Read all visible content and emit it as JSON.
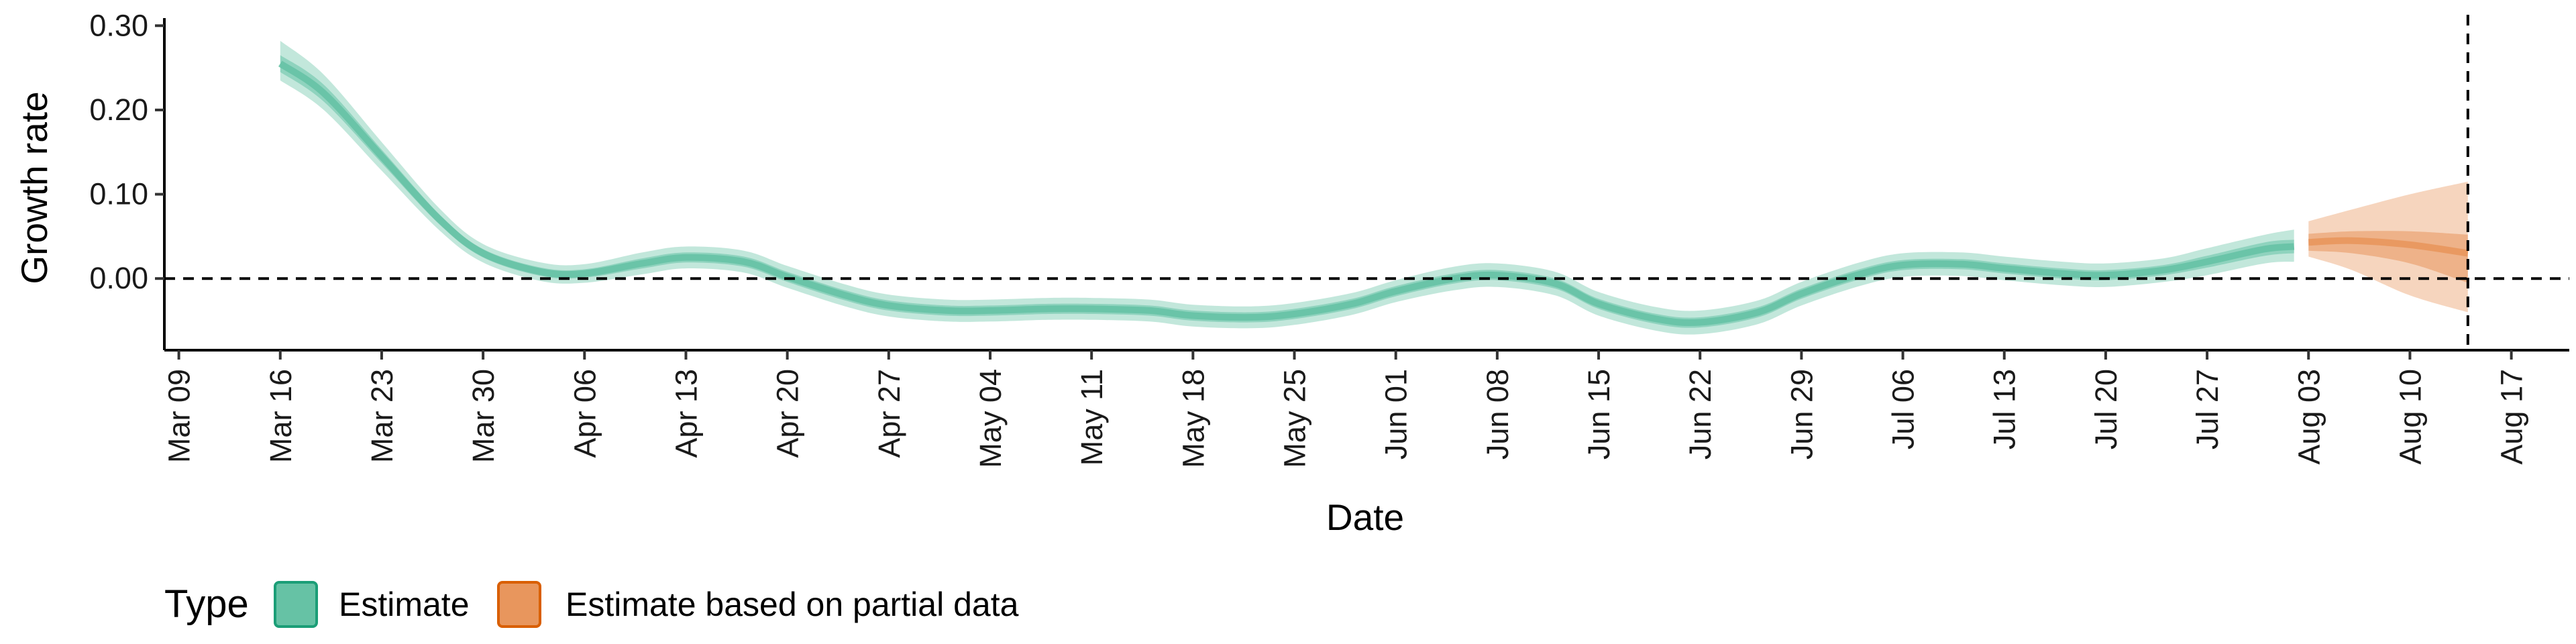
{
  "chart_data": {
    "type": "line",
    "xlabel": "Date",
    "ylabel": "Growth rate",
    "x_axis": {
      "scale": "date",
      "range": [
        "2020-03-08",
        "2020-08-21"
      ],
      "tick_labels": [
        "Mar 09",
        "Mar 16",
        "Mar 23",
        "Mar 30",
        "Apr 06",
        "Apr 13",
        "Apr 20",
        "Apr 27",
        "May 04",
        "May 11",
        "May 18",
        "May 25",
        "Jun 01",
        "Jun 08",
        "Jun 15",
        "Jun 22",
        "Jun 29",
        "Jul 06",
        "Jul 13",
        "Jul 20",
        "Jul 27",
        "Aug 03",
        "Aug 10",
        "Aug 17"
      ],
      "tick_values": [
        "2020-03-09",
        "2020-03-16",
        "2020-03-23",
        "2020-03-30",
        "2020-04-06",
        "2020-04-13",
        "2020-04-20",
        "2020-04-27",
        "2020-05-04",
        "2020-05-11",
        "2020-05-18",
        "2020-05-25",
        "2020-06-01",
        "2020-06-08",
        "2020-06-15",
        "2020-06-22",
        "2020-06-29",
        "2020-07-06",
        "2020-07-13",
        "2020-07-20",
        "2020-07-27",
        "2020-08-03",
        "2020-08-10",
        "2020-08-17"
      ]
    },
    "y_axis": {
      "range": [
        -0.085,
        0.305
      ],
      "tick_labels": [
        "0.00",
        "0.10",
        "0.20",
        "0.30"
      ],
      "tick_values": [
        0,
        0.1,
        0.2,
        0.3
      ]
    },
    "reference_lines": {
      "horizontal_y": 0,
      "vertical_x": "2020-08-14",
      "style": "dashed"
    },
    "grid": false,
    "legend": {
      "title": "Type",
      "position": "bottom-left",
      "entries": [
        {
          "label": "Estimate",
          "fill": "#66c2a5",
          "border": "#1b9e77"
        },
        {
          "label": "Estimate based on partial data",
          "fill": "#e8965d",
          "border": "#d95f02"
        }
      ]
    },
    "series": [
      {
        "name": "Estimate",
        "color": "#66c2a5",
        "x": [
          "2020-03-16",
          "2020-03-19",
          "2020-03-23",
          "2020-03-27",
          "2020-03-30",
          "2020-04-03",
          "2020-04-06",
          "2020-04-10",
          "2020-04-13",
          "2020-04-17",
          "2020-04-20",
          "2020-04-24",
          "2020-04-27",
          "2020-05-01",
          "2020-05-04",
          "2020-05-08",
          "2020-05-11",
          "2020-05-15",
          "2020-05-18",
          "2020-05-22",
          "2020-05-25",
          "2020-05-29",
          "2020-06-01",
          "2020-06-05",
          "2020-06-08",
          "2020-06-12",
          "2020-06-15",
          "2020-06-19",
          "2020-06-22",
          "2020-06-26",
          "2020-06-29",
          "2020-07-03",
          "2020-07-06",
          "2020-07-10",
          "2020-07-13",
          "2020-07-17",
          "2020-07-20",
          "2020-07-24",
          "2020-07-27",
          "2020-07-31",
          "2020-08-02"
        ],
        "mean": [
          0.255,
          0.22,
          0.145,
          0.07,
          0.03,
          0.008,
          0.006,
          0.018,
          0.025,
          0.02,
          0.002,
          -0.02,
          -0.032,
          -0.038,
          -0.038,
          -0.036,
          -0.036,
          -0.038,
          -0.044,
          -0.046,
          -0.042,
          -0.03,
          -0.015,
          0.0,
          0.004,
          -0.006,
          -0.03,
          -0.048,
          -0.052,
          -0.04,
          -0.018,
          0.005,
          0.016,
          0.017,
          0.012,
          0.006,
          0.004,
          0.01,
          0.02,
          0.035,
          0.038
        ],
        "lower_50": [
          0.245,
          0.21,
          0.137,
          0.064,
          0.025,
          0.003,
          0.001,
          0.012,
          0.019,
          0.014,
          -0.004,
          -0.026,
          -0.038,
          -0.044,
          -0.044,
          -0.042,
          -0.042,
          -0.044,
          -0.05,
          -0.052,
          -0.048,
          -0.036,
          -0.021,
          -0.006,
          -0.002,
          -0.012,
          -0.036,
          -0.054,
          -0.058,
          -0.046,
          -0.024,
          -0.001,
          0.01,
          0.011,
          0.006,
          0.0,
          -0.002,
          0.004,
          0.013,
          0.027,
          0.03
        ],
        "upper_50": [
          0.265,
          0.23,
          0.153,
          0.076,
          0.035,
          0.013,
          0.011,
          0.024,
          0.031,
          0.026,
          0.008,
          -0.014,
          -0.026,
          -0.032,
          -0.032,
          -0.03,
          -0.03,
          -0.032,
          -0.038,
          -0.04,
          -0.036,
          -0.024,
          -0.009,
          0.006,
          0.01,
          0.0,
          -0.024,
          -0.042,
          -0.046,
          -0.034,
          -0.012,
          0.011,
          0.022,
          0.023,
          0.018,
          0.012,
          0.01,
          0.016,
          0.027,
          0.043,
          0.046
        ],
        "lower_90": [
          0.235,
          0.2,
          0.128,
          0.057,
          0.019,
          -0.003,
          -0.005,
          0.005,
          0.012,
          0.007,
          -0.011,
          -0.033,
          -0.045,
          -0.051,
          -0.051,
          -0.049,
          -0.049,
          -0.051,
          -0.057,
          -0.059,
          -0.055,
          -0.043,
          -0.028,
          -0.014,
          -0.01,
          -0.02,
          -0.044,
          -0.062,
          -0.066,
          -0.054,
          -0.032,
          -0.009,
          0.002,
          0.003,
          -0.002,
          -0.008,
          -0.01,
          -0.004,
          0.004,
          0.018,
          0.02
        ],
        "upper_90": [
          0.282,
          0.242,
          0.162,
          0.083,
          0.041,
          0.019,
          0.017,
          0.031,
          0.038,
          0.033,
          0.015,
          -0.007,
          -0.019,
          -0.025,
          -0.025,
          -0.023,
          -0.023,
          -0.025,
          -0.031,
          -0.033,
          -0.029,
          -0.017,
          -0.002,
          0.014,
          0.018,
          0.008,
          -0.016,
          -0.034,
          -0.038,
          -0.026,
          -0.004,
          0.019,
          0.03,
          0.031,
          0.026,
          0.02,
          0.018,
          0.024,
          0.036,
          0.052,
          0.058
        ]
      },
      {
        "name": "Estimate based on partial data",
        "color": "#e8965d",
        "x": [
          "2020-08-03",
          "2020-08-06",
          "2020-08-10",
          "2020-08-14"
        ],
        "mean": [
          0.043,
          0.045,
          0.04,
          0.03
        ],
        "lower_50": [
          0.033,
          0.03,
          0.018,
          -0.005
        ],
        "upper_50": [
          0.053,
          0.056,
          0.056,
          0.052
        ],
        "lower_90": [
          0.026,
          0.01,
          -0.02,
          -0.04
        ],
        "upper_90": [
          0.068,
          0.082,
          0.1,
          0.115
        ]
      }
    ]
  }
}
